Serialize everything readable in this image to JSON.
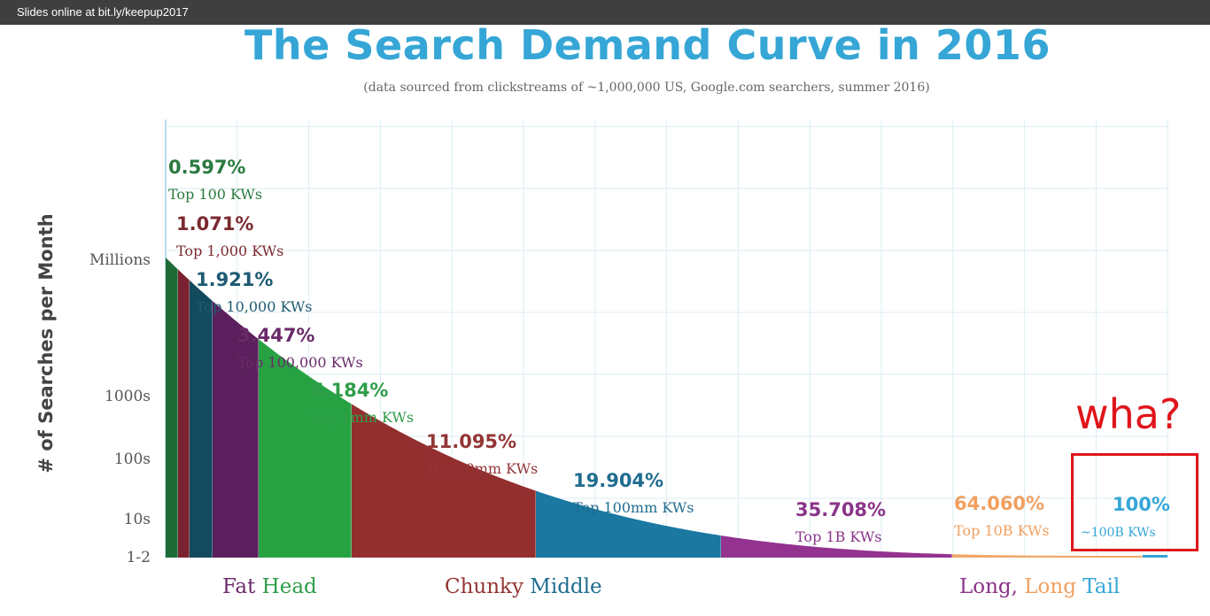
{
  "top_bar": {
    "text": "Slides online at bit.ly/keepup2017"
  },
  "annotation": {
    "text": "wha?",
    "color": "#e0151b"
  },
  "chart_data": {
    "type": "area",
    "title": "The Search Demand Curve in 2016",
    "subtitle": "(data sourced from clickstreams of ~1,000,000 US, Google.com searchers, summer 2016)",
    "ylabel": "# of Searches per Month",
    "y_ticks": [
      "Millions",
      "1000s",
      "100s",
      "10s",
      "1-2"
    ],
    "grid": true,
    "segments": [
      {
        "percent": "0.597%",
        "label": "Top 100 KWs",
        "value": 0.597,
        "color": "#1f6b37",
        "text_color": "#2b7a3f"
      },
      {
        "percent": "1.071%",
        "label": "Top 1,000 KWs",
        "value": 1.071,
        "color": "#7a2230",
        "text_color": "#7a2a2f"
      },
      {
        "percent": "1.921%",
        "label": "Top 10,000 KWs",
        "value": 1.921,
        "color": "#134a5e",
        "text_color": "#1d5a72"
      },
      {
        "percent": "3.447%",
        "label": "Top 100,000 KWs",
        "value": 3.447,
        "color": "#5a1f5c",
        "text_color": "#6a2a6a"
      },
      {
        "percent": "6.184%",
        "label": "Top 1mm KWs",
        "value": 6.184,
        "color": "#27a243",
        "text_color": "#2e9d48"
      },
      {
        "percent": "11.095%",
        "label": "Top 10mm KWs",
        "value": 11.095,
        "color": "#932f2f",
        "text_color": "#933535"
      },
      {
        "percent": "19.904%",
        "label": "Top 100mm KWs",
        "value": 19.904,
        "color": "#1a78a1",
        "text_color": "#1f6d8f"
      },
      {
        "percent": "35.708%",
        "label": "Top 1B KWs",
        "value": 35.708,
        "color": "#93328f",
        "text_color": "#8a3489"
      },
      {
        "percent": "64.060%",
        "label": "Top 10B KWs",
        "value": 64.06,
        "color": "#f0a868",
        "text_color": "#f0a060"
      },
      {
        "percent": "100%",
        "label": "~100B KWs",
        "value": 100,
        "color": "#35a6d6",
        "text_color": "#35a6d6"
      }
    ],
    "categories": [
      {
        "parts": [
          {
            "text": "Fat ",
            "color": "#6a2a6a"
          },
          {
            "text": "Head",
            "color": "#2e9d48"
          }
        ]
      },
      {
        "parts": [
          {
            "text": "Chunky ",
            "color": "#933535"
          },
          {
            "text": "Middle",
            "color": "#1f6d8f"
          }
        ]
      },
      {
        "parts": [
          {
            "text": "Long, ",
            "color": "#8a3489"
          },
          {
            "text": "Long ",
            "color": "#f0a060"
          },
          {
            "text": "Tail",
            "color": "#35a6d6"
          }
        ]
      }
    ]
  }
}
